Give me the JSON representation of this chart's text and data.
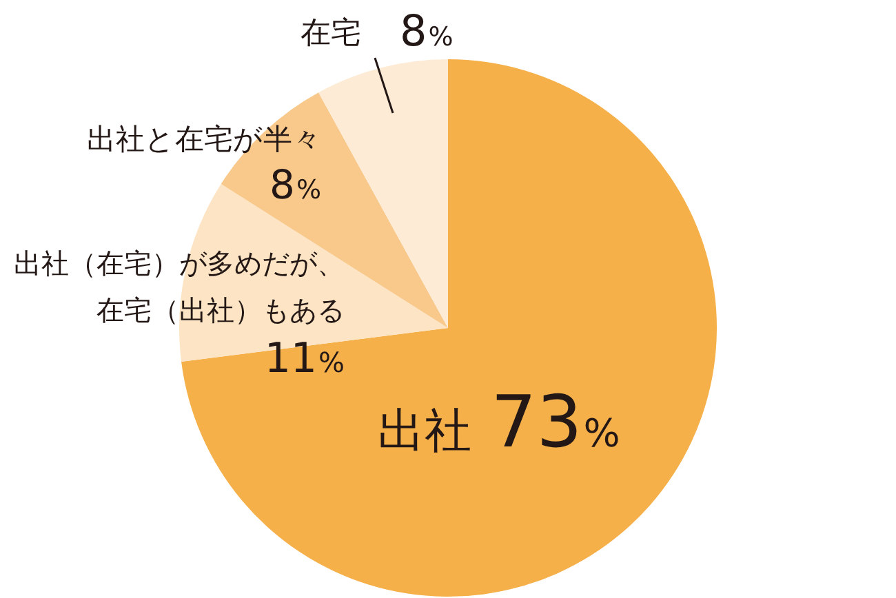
{
  "chart_data": {
    "type": "pie",
    "categories": [
      "出社",
      "出社（在宅）が多めだが、在宅（出社）もある",
      "出社と在宅が半々",
      "在宅"
    ],
    "values": [
      73,
      11,
      8,
      8
    ],
    "colors": [
      "#f5b04a",
      "#fde4c4",
      "#f8c98b",
      "#fdebd5"
    ],
    "value_labels": [
      "73%",
      "11%",
      "8%",
      "8%"
    ]
  }
}
